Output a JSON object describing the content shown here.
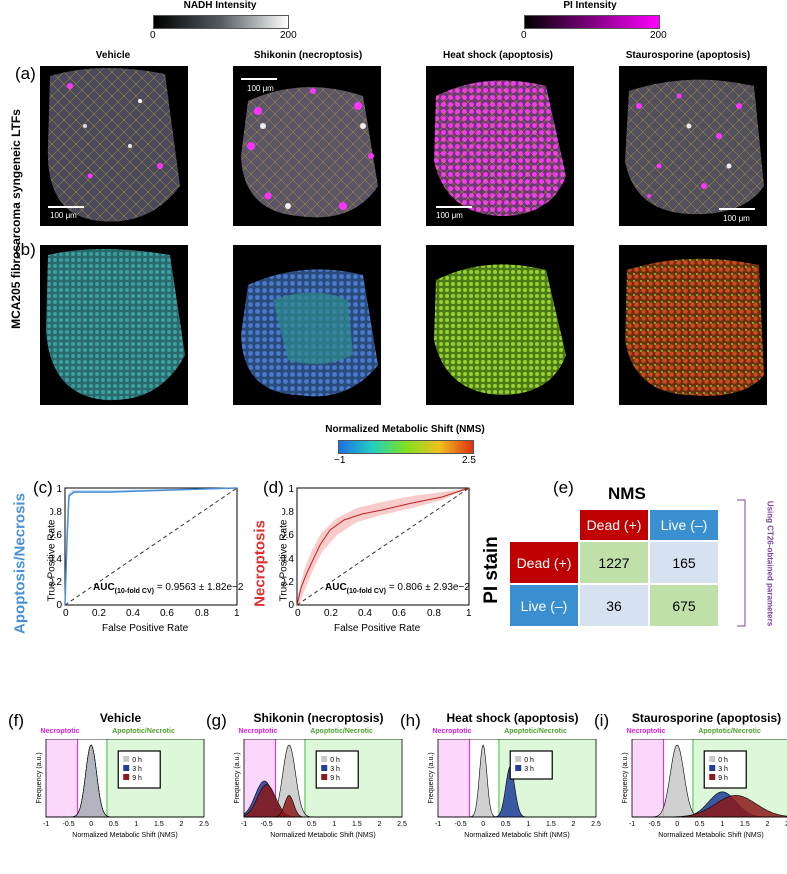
{
  "colorbars": {
    "nadh": {
      "title": "NADH Intensity",
      "min": "0",
      "max": "200",
      "colors": [
        "#000000",
        "#ffffff"
      ]
    },
    "pi": {
      "title": "PI Intensity",
      "min": "0",
      "max": "200",
      "colors": [
        "#000000",
        "#ff00ff"
      ]
    },
    "nms": {
      "title": "Normalized Metabolic Shift (NMS)",
      "min": "−1",
      "max": "2.5",
      "colors": [
        "#1e70e6",
        "#20d0c0",
        "#80e020",
        "#f0c020",
        "#e03010"
      ]
    }
  },
  "columns": [
    "Vehicle",
    "Shikonin (necroptosis)",
    "Heat shock (apoptosis)",
    "Staurosporine (apoptosis)"
  ],
  "row_title": "MCA205 fibrosarcoma syngeneic LTFs",
  "labels": {
    "a": "(a)",
    "b": "(b)",
    "c": "(c)",
    "d": "(d)",
    "e": "(e)",
    "f": "(f)",
    "g": "(g)",
    "h": "(h)",
    "i": "(i)"
  },
  "scale_bar": "100 μm",
  "roc_c": {
    "ylabel_side": "Apoptosis/Necrosis",
    "ylabel": "True Positive Rate",
    "xlabel": "False Positive Rate",
    "auc_label": "AUC",
    "auc_sub": "(10-fold CV)",
    "auc_value": " = 0.9563 ± 1.82e−2",
    "color": "#4a90d9"
  },
  "roc_d": {
    "ylabel_side": "Necroptosis",
    "ylabel": "True Positive Rate",
    "xlabel": "False Positive Rate",
    "auc_label": "AUC",
    "auc_sub": "(10-fold CV)",
    "auc_value": " = 0.806 ± 2.93e−2",
    "color": "#e03030"
  },
  "ticks": {
    "x": [
      "0",
      "0.2",
      "0.4",
      "0.6",
      "0.8",
      "1"
    ],
    "y": [
      "0",
      "0.2",
      "0.4",
      "0.6",
      "0.8",
      "1"
    ]
  },
  "confusion": {
    "title": "NMS",
    "side": "PI stain",
    "col_headers": [
      "Dead (+)",
      "Live (–)"
    ],
    "row_headers": [
      "Dead (+)",
      "Live (–)"
    ],
    "values": [
      [
        "1227",
        "165"
      ],
      [
        "36",
        "675"
      ]
    ],
    "note": "Using CT26-obtained parameters"
  },
  "hist": {
    "ylabel": "Frequency (a.u.)",
    "xlabel": "Normalized Metabolic Shift (NMS)",
    "xticks": [
      "-1",
      "-0.5",
      "0",
      "0.5",
      "1",
      "1.5",
      "2",
      "2.5"
    ],
    "necroptotic": "Necroptotic",
    "apoptotic": "Apoptotic/Necrotic",
    "titles": [
      "Vehicle",
      "Shikonin (necroptosis)",
      "Heat shock (apoptosis)",
      "Staurosporine (apoptosis)"
    ],
    "legend": [
      "0 h",
      "3 h",
      "9 h"
    ],
    "legend_colors": [
      "#c8c8c8",
      "#1f3d99",
      "#8b1a1a"
    ]
  }
}
